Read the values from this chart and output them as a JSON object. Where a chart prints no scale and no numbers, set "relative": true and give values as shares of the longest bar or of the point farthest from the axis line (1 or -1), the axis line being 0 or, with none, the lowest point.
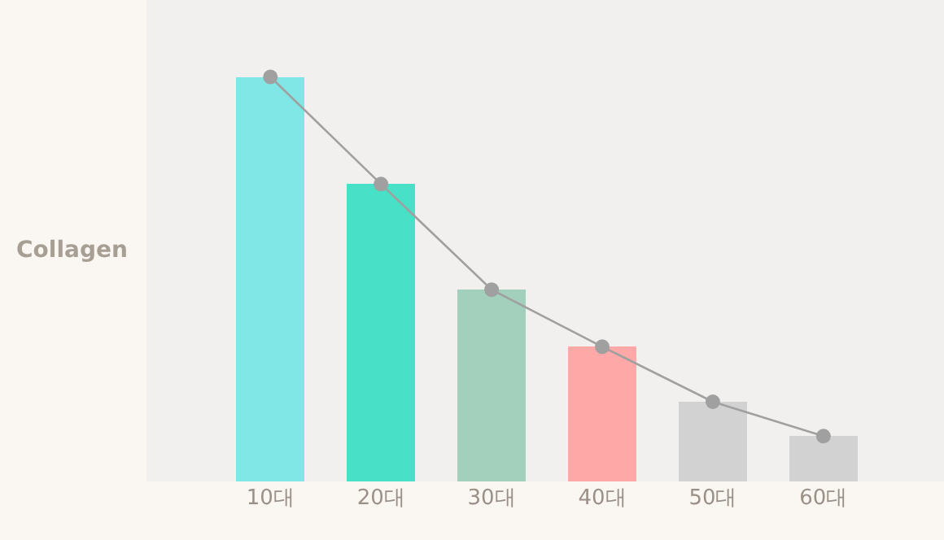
{
  "chart_data": {
    "type": "bar",
    "relative": true,
    "ylabel": "Collagen",
    "categories": [
      "10대",
      "20대",
      "30대",
      "40대",
      "50대",
      "60대"
    ],
    "series": [
      {
        "colors": [
          "#80e6e6",
          "#48e0c6",
          "#a2d0bd",
          "#ffa8a8",
          "#d2d2d2",
          "#d2d2d2"
        ],
        "values": [
          1,
          0.735,
          0.474,
          0.333,
          0.197,
          0.112
        ]
      },
      {
        "type": "line",
        "color": "#a0a0a0",
        "values": [
          1,
          0.735,
          0.474,
          0.333,
          0.197,
          0.112
        ]
      }
    ],
    "marker": "circle",
    "grid": false
  }
}
